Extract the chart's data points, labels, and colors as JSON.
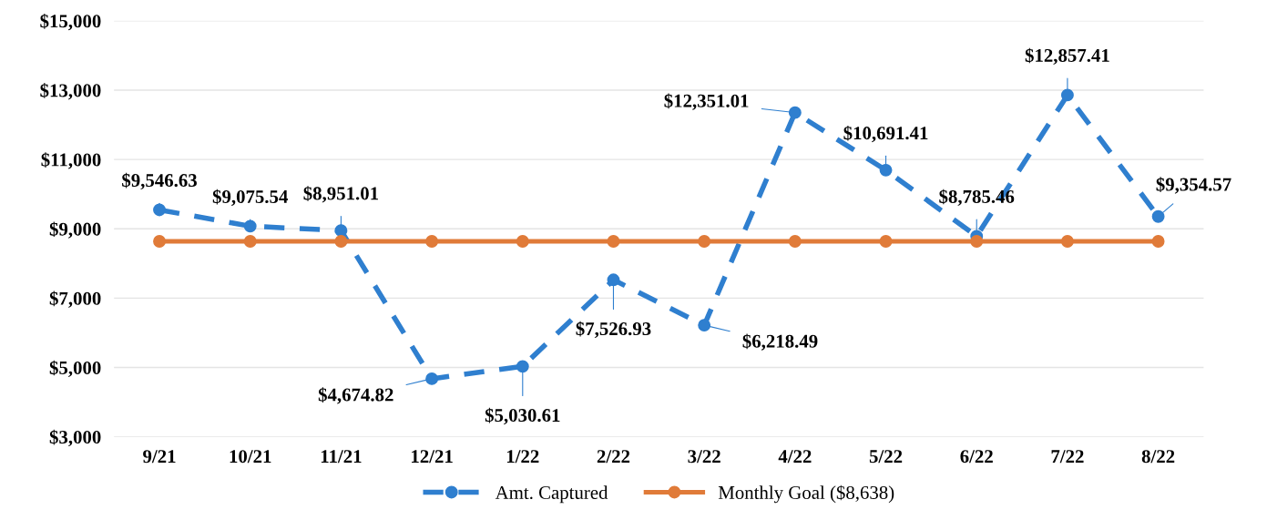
{
  "chart_data": {
    "type": "line",
    "categories": [
      "9/21",
      "10/21",
      "11/21",
      "12/21",
      "1/22",
      "2/22",
      "3/22",
      "4/22",
      "5/22",
      "6/22",
      "7/22",
      "8/22"
    ],
    "series": [
      {
        "name": "Amt. Captured",
        "color": "#2f7fcf",
        "line_style": "dashed",
        "values": [
          9546.63,
          9075.54,
          8951.01,
          4674.82,
          5030.61,
          7526.93,
          6218.49,
          12351.01,
          10691.41,
          8785.46,
          12857.41,
          9354.57
        ],
        "value_labels": [
          "$9,546.63",
          "$9,075.54",
          "$8,951.01",
          "$4,674.82",
          "$5,030.61",
          "$7,526.93",
          "$6,218.49",
          "$12,351.01",
          "$10,691.41",
          "$8,785.46",
          "$12,857.41",
          "$9,354.57"
        ]
      },
      {
        "name": "Monthly Goal ($8,638)",
        "color": "#e07b39",
        "line_style": "solid",
        "values": [
          8638,
          8638,
          8638,
          8638,
          8638,
          8638,
          8638,
          8638,
          8638,
          8638,
          8638,
          8638
        ]
      }
    ],
    "ylim": [
      3000,
      15000
    ],
    "yticks": [
      {
        "value": 3000,
        "label": "$3,000"
      },
      {
        "value": 5000,
        "label": "$5,000"
      },
      {
        "value": 7000,
        "label": "$7,000"
      },
      {
        "value": 9000,
        "label": "$9,000"
      },
      {
        "value": 11000,
        "label": "$11,000"
      },
      {
        "value": 13000,
        "label": "$13,000"
      },
      {
        "value": 15000,
        "label": "$15,000"
      }
    ],
    "grid": "y",
    "legend": "bottom",
    "marker": "circle"
  }
}
